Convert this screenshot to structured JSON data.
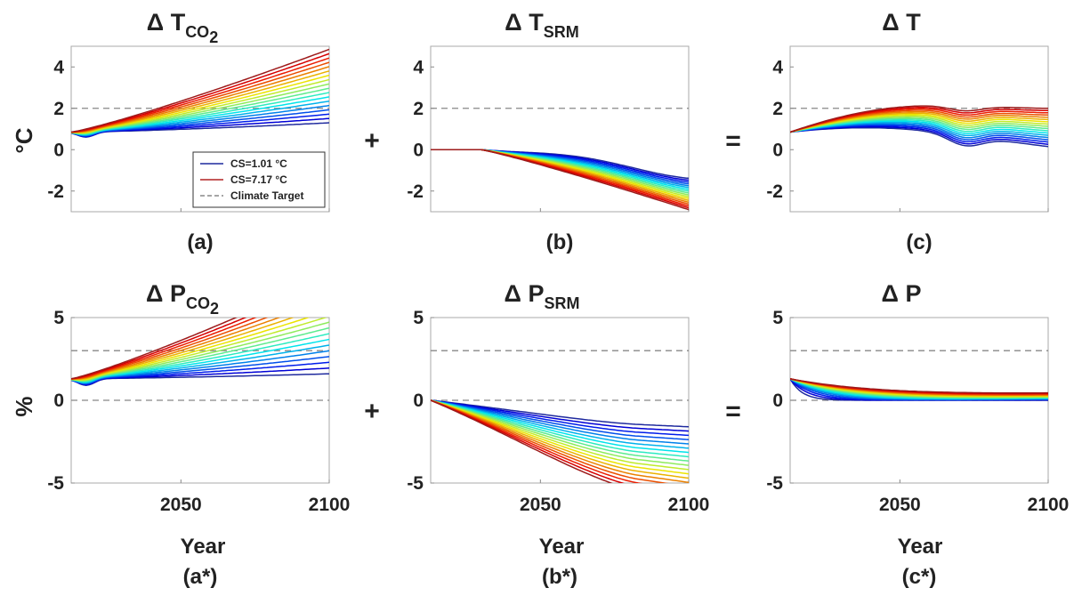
{
  "figure": {
    "operators": [
      "+",
      "=",
      "+",
      "="
    ],
    "ylabel_top": "°C",
    "ylabel_bottom": "%",
    "xlabel": "Year"
  },
  "chart_data": [
    {
      "id": "a",
      "type": "line",
      "title": "Δ T",
      "title_sub": "CO",
      "title_subsub": "2",
      "panel_label": "(a)",
      "ylim": [
        -3,
        5
      ],
      "yticks": [
        -2,
        0,
        2,
        4
      ],
      "xlim": [
        2013,
        2100
      ],
      "xticks": [
        2050,
        2100
      ],
      "show_xtick_labels": false,
      "climate_target": [
        2
      ],
      "zero_line": false,
      "ensemble": {
        "count": 18,
        "start": 0.85,
        "low_end": 1.3,
        "high_end": 4.85,
        "dip": 0.25,
        "color_low": "CS=1.01 °C",
        "color_high": "CS=7.17 °C",
        "clip": false
      },
      "legend": {
        "entries": [
          "CS=1.01 °C",
          "CS=7.17 °C",
          "Climate Target"
        ],
        "colors": [
          "#1f2a9e",
          "#b22222",
          "#888888"
        ],
        "placement": "bottom-right"
      }
    },
    {
      "id": "b",
      "type": "line",
      "title": "Δ T",
      "title_sub": "SRM",
      "title_subsub": "",
      "panel_label": "(b)",
      "ylim": [
        -3,
        5
      ],
      "yticks": [
        -2,
        0,
        2,
        4
      ],
      "xlim": [
        2013,
        2100
      ],
      "xticks": [
        2050,
        2100
      ],
      "show_xtick_labels": false,
      "climate_target": [
        2
      ],
      "zero_line": false,
      "ensemble": {
        "count": 18,
        "start": 0.0,
        "flat_until": 2030,
        "low_end": -1.05,
        "high_end": -2.9,
        "clip": true
      }
    },
    {
      "id": "c",
      "type": "line",
      "title": "Δ T",
      "title_sub": "",
      "title_subsub": "",
      "panel_label": "(c)",
      "ylim": [
        -3,
        5
      ],
      "yticks": [
        -2,
        0,
        2,
        4
      ],
      "xlim": [
        2013,
        2100
      ],
      "xticks": [
        2050,
        2100
      ],
      "show_xtick_labels": false,
      "climate_target": [
        2
      ],
      "zero_line": false,
      "ensemble": {
        "count": 18,
        "start": 0.85,
        "low_end": 0.15,
        "high_end": 2.0,
        "clip": false
      }
    },
    {
      "id": "a*",
      "type": "line",
      "title": "Δ P",
      "title_sub": "CO",
      "title_subsub": "2",
      "panel_label": "(a*)",
      "ylim": [
        -5,
        5
      ],
      "yticks": [
        -5,
        0,
        5
      ],
      "xlim": [
        2013,
        2100
      ],
      "xticks": [
        2050,
        2100
      ],
      "show_xtick_labels": true,
      "climate_target": [
        3
      ],
      "zero_line": true,
      "ensemble": {
        "count": 18,
        "start": 1.3,
        "low_end": 1.6,
        "high_end": 7.5,
        "dip": 0.4,
        "clip": true
      }
    },
    {
      "id": "b*",
      "type": "line",
      "title": "Δ P",
      "title_sub": "SRM",
      "title_subsub": "",
      "panel_label": "(b*)",
      "ylim": [
        -5,
        5
      ],
      "yticks": [
        -5,
        0,
        5
      ],
      "xlim": [
        2013,
        2100
      ],
      "xticks": [
        2050,
        2100
      ],
      "show_xtick_labels": true,
      "climate_target": [
        3
      ],
      "zero_line": true,
      "ensemble": {
        "count": 18,
        "start": 0.0,
        "low_end": -1.6,
        "high_end": -6.0,
        "clip": true
      }
    },
    {
      "id": "c*",
      "type": "line",
      "title": "Δ P",
      "title_sub": "",
      "title_subsub": "",
      "panel_label": "(c*)",
      "ylim": [
        -5,
        5
      ],
      "yticks": [
        -5,
        0,
        5
      ],
      "xlim": [
        2013,
        2100
      ],
      "xticks": [
        2050,
        2100
      ],
      "show_xtick_labels": true,
      "climate_target": [
        3
      ],
      "zero_line": true,
      "ensemble": {
        "count": 18,
        "start": 1.3,
        "low_end": 0.0,
        "high_end": 0.35,
        "clip": true
      }
    }
  ]
}
